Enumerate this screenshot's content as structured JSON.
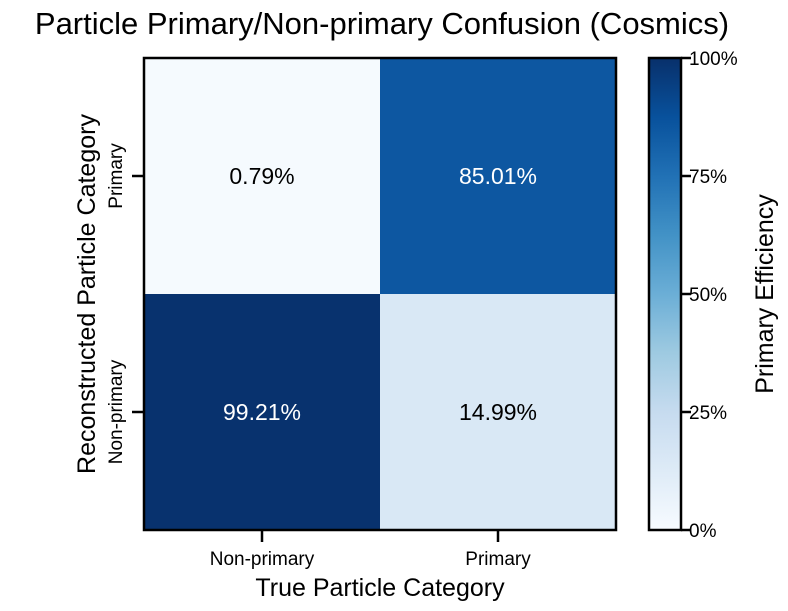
{
  "chart_data": {
    "type": "heatmap",
    "title": "Particle Primary/Non-primary Confusion (Cosmics)",
    "xlabel": "True Particle Category",
    "ylabel": "Reconstructed Particle Category",
    "x_categories": [
      "Non-primary",
      "Primary"
    ],
    "y_categories": [
      "Primary",
      "Non-primary"
    ],
    "values": [
      [
        0.79,
        85.01
      ],
      [
        99.21,
        14.99
      ]
    ],
    "cell_labels": [
      [
        "0.79%",
        "85.01%"
      ],
      [
        "99.21%",
        "14.99%"
      ]
    ],
    "colorbar": {
      "label": "Primary Efficiency",
      "range": [
        0,
        100
      ],
      "ticks": [
        0,
        25,
        50,
        75,
        100
      ],
      "tick_labels": [
        "0%",
        "25%",
        "50%",
        "75%",
        "100%"
      ],
      "colormap": "Blues"
    },
    "colors": {
      "low": "#f7fbff",
      "high": "#08306b",
      "text_dark": "#000000",
      "text_light": "#ffffff"
    }
  }
}
